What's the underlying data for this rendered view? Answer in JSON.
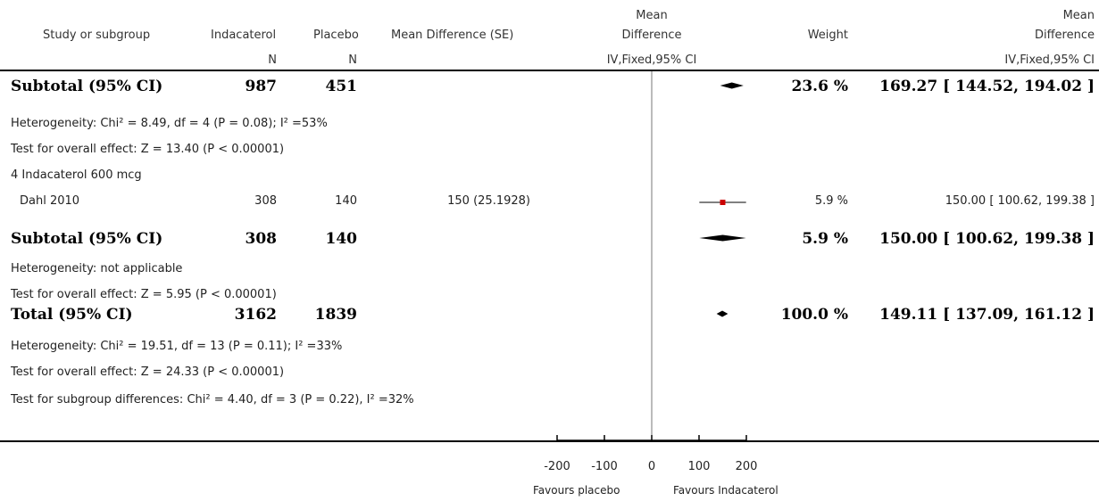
{
  "header": {
    "col_study": "Study or subgroup",
    "col_ind": "Indacaterol",
    "col_ind_sub": "N",
    "col_pla": "Placebo",
    "col_pla_sub": "N",
    "col_md_se": "Mean Difference (SE)",
    "col_plot_l1": "Mean",
    "col_plot_l2": "Difference",
    "col_plot_sub": "IV,Fixed,95% CI",
    "col_weight": "Weight",
    "col_res_l1": "Mean",
    "col_res_l2": "Difference",
    "col_res_sub": "IV,Fixed,95% CI"
  },
  "rows": [
    {
      "label": "Subtotal (95% CI)",
      "n1": "987",
      "n2": "451",
      "weight": "23.6 %",
      "ci": "169.27 [ 144.52, 194.02 ]"
    },
    {
      "text": "Heterogeneity: Chi² = 8.49, df = 4 (P = 0.08); I² =53%"
    },
    {
      "text": "Test for overall effect: Z = 13.40 (P < 0.00001)"
    },
    {
      "text": "4 Indacaterol 600 mcg"
    },
    {
      "label": "Dahl 2010",
      "n1": "308",
      "n2": "140",
      "se": "150 (25.1928)",
      "weight": "5.9 %",
      "ci": "150.00 [ 100.62, 199.38 ]"
    },
    {
      "label": "Subtotal (95% CI)",
      "n1": "308",
      "n2": "140",
      "weight": "5.9 %",
      "ci": "150.00 [ 100.62, 199.38 ]"
    },
    {
      "text": "Heterogeneity: not applicable"
    },
    {
      "text": "Test for overall effect: Z = 5.95 (P < 0.00001)"
    },
    {
      "label": "Total (95% CI)",
      "n1": "3162",
      "n2": "1839",
      "weight": "100.0 %",
      "ci": "149.11 [ 137.09, 161.12 ]"
    },
    {
      "text": "Heterogeneity: Chi² = 19.51, df = 13 (P = 0.11); I² =33%"
    },
    {
      "text": "Test for overall effect: Z = 24.33 (P < 0.00001)"
    },
    {
      "text": "Test for subgroup differences: Chi² = 4.40, df = 3 (P = 0.22), I² =32%"
    }
  ],
  "axis": {
    "ticks": [
      "-200",
      "-100",
      "0",
      "100",
      "200"
    ],
    "favours_left": "Favours placebo",
    "favours_right": "Favours Indacaterol"
  },
  "chart_data": {
    "type": "forest",
    "xlim": [
      -200,
      200
    ],
    "ticks": [
      -200,
      -100,
      0,
      100,
      200
    ],
    "xlabel_left": "Favours placebo",
    "xlabel_right": "Favours Indacaterol",
    "studies": [
      {
        "name": "Dahl 2010",
        "estimate": 150.0,
        "lower": 100.62,
        "upper": 199.38,
        "weight_pct": 5.9
      }
    ],
    "summaries": [
      {
        "name": "Subtotal (95% CI)",
        "estimate": 169.27,
        "lower": 144.52,
        "upper": 194.02,
        "weight_pct": 23.6
      },
      {
        "name": "Subtotal (95% CI)",
        "estimate": 150.0,
        "lower": 100.62,
        "upper": 199.38,
        "weight_pct": 5.9
      },
      {
        "name": "Total (95% CI)",
        "estimate": 149.11,
        "lower": 137.09,
        "upper": 161.12,
        "weight_pct": 100.0
      }
    ],
    "colors": {
      "study_box": "#cc0000",
      "diamond": "#000000"
    }
  }
}
